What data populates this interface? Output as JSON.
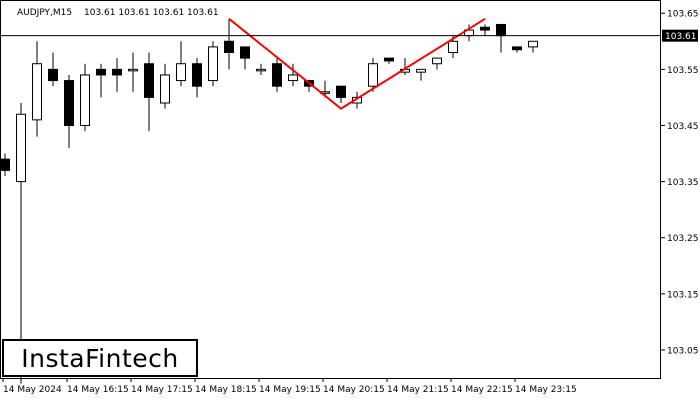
{
  "header": {
    "symbol_timeframe": "AUDJPY,M15",
    "ohlc": "103.61 103.61 103.61 103.61"
  },
  "current_price_label": "103.61",
  "logo_text": "InstaFintech",
  "colors": {
    "bull_fill": "#ffffff",
    "bear_fill": "#000000",
    "pattern_line": "#ff0000",
    "price_tag_bg": "#000000",
    "price_tag_text": "#ffffff"
  },
  "chart_data": {
    "type": "candlestick",
    "ylim": [
      103.0,
      103.67
    ],
    "y_ticks": [
      "103.65",
      "103.55",
      "103.45",
      "103.35",
      "103.25",
      "103.15",
      "103.05"
    ],
    "x_tick_labels": [
      "14 May 2024",
      "14 May 16:15",
      "14 May 17:15",
      "14 May 18:15",
      "14 May 19:15",
      "14 May 20:15",
      "14 May 21:15",
      "14 May 22:15",
      "14 May 23:15"
    ],
    "current_price": 103.61,
    "candles": [
      {
        "o": 103.39,
        "h": 103.4,
        "l": 103.36,
        "c": 103.37
      },
      {
        "o": 103.35,
        "h": 103.49,
        "l": 102.99,
        "c": 103.47
      },
      {
        "o": 103.46,
        "h": 103.6,
        "l": 103.43,
        "c": 103.56
      },
      {
        "o": 103.55,
        "h": 103.58,
        "l": 103.52,
        "c": 103.53
      },
      {
        "o": 103.53,
        "h": 103.54,
        "l": 103.41,
        "c": 103.45
      },
      {
        "o": 103.45,
        "h": 103.56,
        "l": 103.44,
        "c": 103.54
      },
      {
        "o": 103.55,
        "h": 103.56,
        "l": 103.5,
        "c": 103.54
      },
      {
        "o": 103.55,
        "h": 103.57,
        "l": 103.51,
        "c": 103.54
      },
      {
        "o": 103.55,
        "h": 103.58,
        "l": 103.51,
        "c": 103.55
      },
      {
        "o": 103.56,
        "h": 103.58,
        "l": 103.44,
        "c": 103.5
      },
      {
        "o": 103.49,
        "h": 103.56,
        "l": 103.48,
        "c": 103.54
      },
      {
        "o": 103.53,
        "h": 103.6,
        "l": 103.52,
        "c": 103.56
      },
      {
        "o": 103.56,
        "h": 103.57,
        "l": 103.5,
        "c": 103.52
      },
      {
        "o": 103.53,
        "h": 103.6,
        "l": 103.52,
        "c": 103.59
      },
      {
        "o": 103.6,
        "h": 103.64,
        "l": 103.55,
        "c": 103.58
      },
      {
        "o": 103.59,
        "h": 103.59,
        "l": 103.55,
        "c": 103.57
      },
      {
        "o": 103.55,
        "h": 103.56,
        "l": 103.54,
        "c": 103.55
      },
      {
        "o": 103.56,
        "h": 103.57,
        "l": 103.51,
        "c": 103.52
      },
      {
        "o": 103.53,
        "h": 103.56,
        "l": 103.52,
        "c": 103.54
      },
      {
        "o": 103.53,
        "h": 103.53,
        "l": 103.51,
        "c": 103.52
      },
      {
        "o": 103.51,
        "h": 103.53,
        "l": 103.5,
        "c": 103.51
      },
      {
        "o": 103.52,
        "h": 103.52,
        "l": 103.49,
        "c": 103.5
      },
      {
        "o": 103.49,
        "h": 103.51,
        "l": 103.48,
        "c": 103.5
      },
      {
        "o": 103.52,
        "h": 103.57,
        "l": 103.51,
        "c": 103.56
      },
      {
        "o": 103.57,
        "h": 103.57,
        "l": 103.56,
        "c": 103.565
      },
      {
        "o": 103.545,
        "h": 103.57,
        "l": 103.54,
        "c": 103.55
      },
      {
        "o": 103.545,
        "h": 103.55,
        "l": 103.53,
        "c": 103.55
      },
      {
        "o": 103.56,
        "h": 103.57,
        "l": 103.55,
        "c": 103.57
      },
      {
        "o": 103.58,
        "h": 103.61,
        "l": 103.57,
        "c": 103.6
      },
      {
        "o": 103.61,
        "h": 103.63,
        "l": 103.6,
        "c": 103.62
      },
      {
        "o": 103.625,
        "h": 103.63,
        "l": 103.61,
        "c": 103.62
      },
      {
        "o": 103.63,
        "h": 103.63,
        "l": 103.58,
        "c": 103.61
      },
      {
        "o": 103.59,
        "h": 103.59,
        "l": 103.58,
        "c": 103.585
      },
      {
        "o": 103.59,
        "h": 103.6,
        "l": 103.58,
        "c": 103.6
      }
    ],
    "pattern": {
      "type": "double-top",
      "points": [
        [
          14,
          103.64
        ],
        [
          21,
          103.48
        ],
        [
          30,
          103.64
        ]
      ]
    }
  }
}
